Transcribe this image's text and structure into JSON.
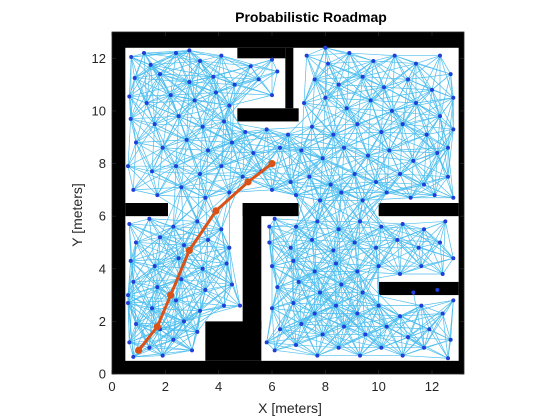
{
  "chart_data": {
    "type": "scatter",
    "title": "Probabilistic Roadmap",
    "xlabel": "X [meters]",
    "ylabel": "Y [meters]",
    "xlim": [
      0,
      13.2
    ],
    "ylim": [
      0,
      13
    ],
    "xticks": [
      0,
      2,
      4,
      6,
      8,
      10,
      12
    ],
    "yticks": [
      0,
      2,
      4,
      6,
      8,
      10,
      12
    ],
    "grid": false,
    "colors": {
      "obstacle": "#000000",
      "free": "#ffffff",
      "edge": "#4DBEEE",
      "node": "#1F3FD6",
      "path": "#D95319",
      "axis": "#262626"
    },
    "obstacles": [
      {
        "x0": 0.0,
        "x1": 13.2,
        "y0": 12.4,
        "y1": 13.0
      },
      {
        "x0": 0.0,
        "x1": 13.2,
        "y0": 0.0,
        "y1": 0.5
      },
      {
        "x0": 0.0,
        "x1": 0.5,
        "y0": 0.0,
        "y1": 13.0
      },
      {
        "x0": 13.0,
        "x1": 13.2,
        "y0": 0.0,
        "y1": 13.0
      },
      {
        "x0": 4.7,
        "x1": 6.5,
        "y0": 12.0,
        "y1": 12.4
      },
      {
        "x0": 6.5,
        "x1": 6.8,
        "y0": 10.1,
        "y1": 12.4
      },
      {
        "x0": 4.7,
        "x1": 7.0,
        "y0": 9.6,
        "y1": 10.1
      },
      {
        "x0": 0.5,
        "x1": 2.1,
        "y0": 6.0,
        "y1": 6.5
      },
      {
        "x0": 4.9,
        "x1": 7.0,
        "y0": 6.0,
        "y1": 6.5
      },
      {
        "x0": 4.9,
        "x1": 5.6,
        "y0": 1.7,
        "y1": 6.5
      },
      {
        "x0": 10.0,
        "x1": 13.0,
        "y0": 6.0,
        "y1": 6.5
      },
      {
        "x0": 10.0,
        "x1": 13.0,
        "y0": 3.0,
        "y1": 3.5
      },
      {
        "x0": 3.5,
        "x1": 5.6,
        "y0": 0.5,
        "y1": 2.0
      }
    ],
    "nodes": [
      [
        0.72,
        12.05
      ],
      [
        1.45,
        11.75
      ],
      [
        2.4,
        12.2
      ],
      [
        3.3,
        11.9
      ],
      [
        4.1,
        12.1
      ],
      [
        5.2,
        11.7
      ],
      [
        6.0,
        11.95
      ],
      [
        6.2,
        11.5
      ],
      [
        0.85,
        11.25
      ],
      [
        1.8,
        11.4
      ],
      [
        2.9,
        11.1
      ],
      [
        3.8,
        11.3
      ],
      [
        4.6,
        11.0
      ],
      [
        5.5,
        11.2
      ],
      [
        6.0,
        10.6
      ],
      [
        0.65,
        10.55
      ],
      [
        1.3,
        10.3
      ],
      [
        2.2,
        10.6
      ],
      [
        3.1,
        10.4
      ],
      [
        3.9,
        10.7
      ],
      [
        4.4,
        10.2
      ],
      [
        0.7,
        9.7
      ],
      [
        1.6,
        9.5
      ],
      [
        2.5,
        9.8
      ],
      [
        3.4,
        9.4
      ],
      [
        4.2,
        9.6
      ],
      [
        5.0,
        9.2
      ],
      [
        5.8,
        9.3
      ],
      [
        6.6,
        9.1
      ],
      [
        0.9,
        8.8
      ],
      [
        1.9,
        8.6
      ],
      [
        2.8,
        8.9
      ],
      [
        3.6,
        8.5
      ],
      [
        4.5,
        8.8
      ],
      [
        5.3,
        8.4
      ],
      [
        6.3,
        8.6
      ],
      [
        0.6,
        7.9
      ],
      [
        1.5,
        7.7
      ],
      [
        2.4,
        7.9
      ],
      [
        3.3,
        7.6
      ],
      [
        4.1,
        7.9
      ],
      [
        4.9,
        7.5
      ],
      [
        5.6,
        7.7
      ],
      [
        6.7,
        7.3
      ],
      [
        0.8,
        7.0
      ],
      [
        1.7,
        6.8
      ],
      [
        2.6,
        7.1
      ],
      [
        3.5,
        6.7
      ],
      [
        4.4,
        6.9
      ],
      [
        6.0,
        7.0
      ],
      [
        6.9,
        6.8
      ],
      [
        7.3,
        12.1
      ],
      [
        8.1,
        11.8
      ],
      [
        8.9,
        12.2
      ],
      [
        9.8,
        11.9
      ],
      [
        10.6,
        12.1
      ],
      [
        11.4,
        11.8
      ],
      [
        12.3,
        12.1
      ],
      [
        12.7,
        11.4
      ],
      [
        7.6,
        11.2
      ],
      [
        8.5,
        11.0
      ],
      [
        9.4,
        11.3
      ],
      [
        10.2,
        10.9
      ],
      [
        11.1,
        11.2
      ],
      [
        12.0,
        10.8
      ],
      [
        12.8,
        10.5
      ],
      [
        7.2,
        10.3
      ],
      [
        8.0,
        10.5
      ],
      [
        8.8,
        10.1
      ],
      [
        9.7,
        10.4
      ],
      [
        10.5,
        10.0
      ],
      [
        11.4,
        10.3
      ],
      [
        12.3,
        9.8
      ],
      [
        12.8,
        9.3
      ],
      [
        7.5,
        9.4
      ],
      [
        8.3,
        9.1
      ],
      [
        9.2,
        9.5
      ],
      [
        10.1,
        9.2
      ],
      [
        10.9,
        9.5
      ],
      [
        11.8,
        9.1
      ],
      [
        12.6,
        8.6
      ],
      [
        7.1,
        8.5
      ],
      [
        7.9,
        8.2
      ],
      [
        8.7,
        8.6
      ],
      [
        9.6,
        8.3
      ],
      [
        10.4,
        8.5
      ],
      [
        11.3,
        8.1
      ],
      [
        12.2,
        8.4
      ],
      [
        7.4,
        7.5
      ],
      [
        8.2,
        7.2
      ],
      [
        9.1,
        7.6
      ],
      [
        9.9,
        7.3
      ],
      [
        10.8,
        7.6
      ],
      [
        11.7,
        7.2
      ],
      [
        12.6,
        7.5
      ],
      [
        7.8,
        6.6
      ],
      [
        8.6,
        6.9
      ],
      [
        9.4,
        6.6
      ],
      [
        10.3,
        6.9
      ],
      [
        11.2,
        6.7
      ],
      [
        12.1,
        6.8
      ],
      [
        12.8,
        6.7
      ],
      [
        0.65,
        5.7
      ],
      [
        1.4,
        5.9
      ],
      [
        2.3,
        5.6
      ],
      [
        3.2,
        5.8
      ],
      [
        4.1,
        5.5
      ],
      [
        0.9,
        5.0
      ],
      [
        1.8,
        5.2
      ],
      [
        2.7,
        4.9
      ],
      [
        3.6,
        5.1
      ],
      [
        4.4,
        4.8
      ],
      [
        0.7,
        4.3
      ],
      [
        1.6,
        4.1
      ],
      [
        2.5,
        4.4
      ],
      [
        3.4,
        4.0
      ],
      [
        4.3,
        4.2
      ],
      [
        0.8,
        3.5
      ],
      [
        1.7,
        3.3
      ],
      [
        2.6,
        3.6
      ],
      [
        3.5,
        3.2
      ],
      [
        4.5,
        3.4
      ],
      [
        0.6,
        2.7
      ],
      [
        1.5,
        2.5
      ],
      [
        2.4,
        2.8
      ],
      [
        3.3,
        2.4
      ],
      [
        4.2,
        2.6
      ],
      [
        0.9,
        1.9
      ],
      [
        1.8,
        1.7
      ],
      [
        2.7,
        2.0
      ],
      [
        3.2,
        1.6
      ],
      [
        0.65,
        1.2
      ],
      [
        1.4,
        1.0
      ],
      [
        2.3,
        1.3
      ],
      [
        3.0,
        0.9
      ],
      [
        0.8,
        0.65
      ],
      [
        1.9,
        0.7
      ],
      [
        4.8,
        2.6
      ],
      [
        6.1,
        5.9
      ],
      [
        6.9,
        5.6
      ],
      [
        7.7,
        5.8
      ],
      [
        8.5,
        5.5
      ],
      [
        9.3,
        5.8
      ],
      [
        10.1,
        5.6
      ],
      [
        10.9,
        5.7
      ],
      [
        11.7,
        5.5
      ],
      [
        12.5,
        5.8
      ],
      [
        5.9,
        5.0
      ],
      [
        6.7,
        4.8
      ],
      [
        7.5,
        5.1
      ],
      [
        8.3,
        4.7
      ],
      [
        9.1,
        5.0
      ],
      [
        9.9,
        4.8
      ],
      [
        10.7,
        5.1
      ],
      [
        11.5,
        4.8
      ],
      [
        12.3,
        5.0
      ],
      [
        12.8,
        4.4
      ],
      [
        6.0,
        4.1
      ],
      [
        6.8,
        4.3
      ],
      [
        7.6,
        3.9
      ],
      [
        8.4,
        4.2
      ],
      [
        9.2,
        3.9
      ],
      [
        10.0,
        4.1
      ],
      [
        10.8,
        3.8
      ],
      [
        11.6,
        4.1
      ],
      [
        12.4,
        3.8
      ],
      [
        6.2,
        3.3
      ],
      [
        7.0,
        3.5
      ],
      [
        7.8,
        3.1
      ],
      [
        8.6,
        3.4
      ],
      [
        9.4,
        3.1
      ],
      [
        6.0,
        2.5
      ],
      [
        6.8,
        2.7
      ],
      [
        7.6,
        2.3
      ],
      [
        8.4,
        2.6
      ],
      [
        9.2,
        2.3
      ],
      [
        10.0,
        2.6
      ],
      [
        10.8,
        2.2
      ],
      [
        11.6,
        2.6
      ],
      [
        12.4,
        2.3
      ],
      [
        12.8,
        2.8
      ],
      [
        6.3,
        1.7
      ],
      [
        7.1,
        1.9
      ],
      [
        7.9,
        1.5
      ],
      [
        8.7,
        1.8
      ],
      [
        9.5,
        1.5
      ],
      [
        10.3,
        1.8
      ],
      [
        11.1,
        1.4
      ],
      [
        11.9,
        1.7
      ],
      [
        12.7,
        1.3
      ],
      [
        6.1,
        0.9
      ],
      [
        6.9,
        1.1
      ],
      [
        7.7,
        0.7
      ],
      [
        8.5,
        1.0
      ],
      [
        9.3,
        0.7
      ],
      [
        10.1,
        1.0
      ],
      [
        10.9,
        0.7
      ],
      [
        11.7,
        1.0
      ],
      [
        12.6,
        0.6
      ],
      [
        5.8,
        1.2
      ],
      [
        12.2,
        3.2
      ],
      [
        11.3,
        3.1
      ],
      [
        5.9,
        5.6
      ],
      [
        8.0,
        12.4
      ],
      [
        2.9,
        12.3
      ],
      [
        1.2,
        12.2
      ],
      [
        0.6,
        3.0
      ]
    ],
    "path": {
      "x": [
        1.0,
        1.7,
        2.2,
        2.9,
        3.9,
        5.1,
        6.0
      ],
      "y": [
        0.9,
        1.8,
        3.0,
        4.7,
        6.2,
        7.3,
        8.0
      ]
    }
  }
}
